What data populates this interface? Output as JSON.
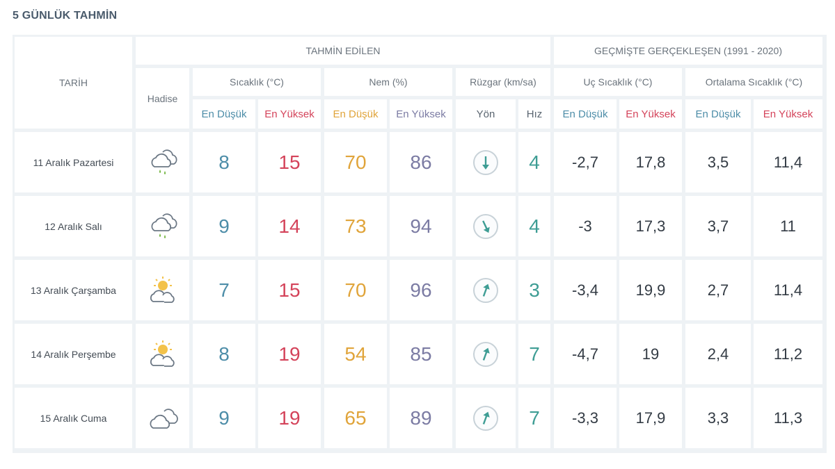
{
  "page_title": "5 GÜNLÜK TAHMİN",
  "headers": {
    "tarih": "TARİH",
    "tahmin_edilen": "TAHMİN EDİLEN",
    "gecmis": "GEÇMİŞTE GERÇEKLEŞEN (1991 - 2020)",
    "hadise": "Hadise",
    "sicaklik": "Sıcaklık (°C)",
    "nem": "Nem (%)",
    "ruzgar": "Rüzgar (km/sa)",
    "uc_sicaklik": "Uç Sıcaklık (°C)",
    "ortalama_sicaklik": "Ortalama Sıcaklık (°C)",
    "en_dusuk": "En Düşük",
    "en_yuksek": "En Yüksek",
    "yon": "Yön",
    "hiz": "Hız"
  },
  "colors": {
    "low": "#4d8da8",
    "high": "#d4435a",
    "humidity_low": "#e0a43a",
    "humidity_high": "#7b7ba3",
    "wind": "#3e9d94",
    "historic": "#333b44"
  },
  "rows": [
    {
      "date": "11 Aralık Pazartesi",
      "icon": "rain-cloud-icon",
      "temp_low": "8",
      "temp_high": "15",
      "hum_low": "70",
      "hum_high": "86",
      "wind_arrow": "arrow-down-icon",
      "wind_speed": "4",
      "uc_low": "-2,7",
      "uc_high": "17,8",
      "ort_low": "3,5",
      "ort_high": "11,4"
    },
    {
      "date": "12 Aralık Salı",
      "icon": "rain-cloud-icon",
      "temp_low": "9",
      "temp_high": "14",
      "hum_low": "73",
      "hum_high": "94",
      "wind_arrow": "arrow-down-right-icon",
      "wind_speed": "4",
      "uc_low": "-3",
      "uc_high": "17,3",
      "ort_low": "3,7",
      "ort_high": "11"
    },
    {
      "date": "13 Aralık Çarşamba",
      "icon": "sun-cloud-icon",
      "temp_low": "7",
      "temp_high": "15",
      "hum_low": "70",
      "hum_high": "96",
      "wind_arrow": "arrow-up-icon",
      "wind_speed": "3",
      "uc_low": "-3,4",
      "uc_high": "19,9",
      "ort_low": "2,7",
      "ort_high": "11,4"
    },
    {
      "date": "14 Aralık Perşembe",
      "icon": "sun-cloud-icon",
      "temp_low": "8",
      "temp_high": "19",
      "hum_low": "54",
      "hum_high": "85",
      "wind_arrow": "arrow-up-icon",
      "wind_speed": "7",
      "uc_low": "-4,7",
      "uc_high": "19",
      "ort_low": "2,4",
      "ort_high": "11,2"
    },
    {
      "date": "15 Aralık Cuma",
      "icon": "cloud-icon",
      "temp_low": "9",
      "temp_high": "19",
      "hum_low": "65",
      "hum_high": "89",
      "wind_arrow": "arrow-up-icon",
      "wind_speed": "7",
      "uc_low": "-3,3",
      "uc_high": "17,9",
      "ort_low": "3,3",
      "ort_high": "11,3"
    }
  ]
}
